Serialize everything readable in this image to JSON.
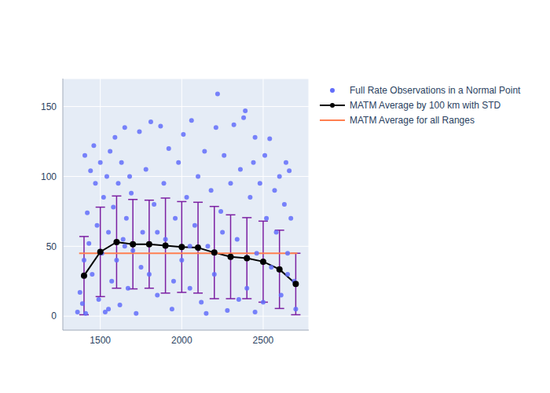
{
  "chart_data": {
    "type": "scatter",
    "xlim": [
      1270,
      2780
    ],
    "ylim": [
      -10,
      170
    ],
    "xticks": [
      1500,
      2000,
      2500
    ],
    "yticks": [
      0,
      50,
      100,
      150
    ],
    "grid": true,
    "legend": "right",
    "series": [
      {
        "name": "Full Rate Observations in a Normal Point",
        "color": "#636efa",
        "type": "scatter",
        "marker": "circle",
        "x": [
          1360,
          1375,
          1390,
          1400,
          1405,
          1410,
          1420,
          1430,
          1440,
          1450,
          1460,
          1470,
          1480,
          1490,
          1500,
          1510,
          1520,
          1530,
          1540,
          1550,
          1560,
          1570,
          1580,
          1590,
          1600,
          1610,
          1620,
          1630,
          1640,
          1650,
          1660,
          1670,
          1680,
          1690,
          1700,
          1720,
          1740,
          1760,
          1780,
          1800,
          1810,
          1830,
          1850,
          1870,
          1890,
          1900,
          1920,
          1940,
          1960,
          1980,
          2000,
          2010,
          2030,
          2050,
          2060,
          2080,
          2100,
          2120,
          2140,
          2160,
          2180,
          2200,
          2210,
          2220,
          2240,
          2260,
          2280,
          2300,
          2320,
          2340,
          2360,
          2380,
          2390,
          2400,
          2420,
          2440,
          2450,
          2460,
          2480,
          2500,
          2510,
          2520,
          2540,
          2550,
          2570,
          2580,
          2600,
          2610,
          2630,
          2640,
          2650,
          2660,
          2670,
          2690,
          2700,
          1550,
          1750,
          1950,
          2150,
          2350,
          2450,
          2650,
          1650,
          1850,
          2050,
          2250
        ],
        "values": [
          3,
          17,
          9,
          40,
          115,
          2,
          74,
          52,
          104,
          30,
          122,
          95,
          65,
          12,
          110,
          45,
          85,
          3,
          100,
          60,
          118,
          25,
          78,
          128,
          40,
          95,
          8,
          110,
          55,
          135,
          70,
          20,
          100,
          88,
          47,
          2,
          132,
          60,
          105,
          30,
          139,
          80,
          15,
          136,
          95,
          55,
          120,
          5,
          70,
          110,
          40,
          130,
          85,
          20,
          140,
          65,
          100,
          10,
          118,
          50,
          90,
          30,
          135,
          159,
          75,
          115,
          4,
          95,
          137,
          55,
          105,
          142,
          147,
          20,
          85,
          110,
          128,
          45,
          95,
          10,
          115,
          70,
          127,
          35,
          90,
          60,
          100,
          15,
          80,
          110,
          45,
          104,
          70,
          25,
          5,
          5,
          35,
          25,
          2,
          12,
          3,
          30,
          50,
          60,
          50,
          60
        ]
      },
      {
        "name": "MATM Average by 100 km with STD",
        "color": "#000000",
        "type": "line",
        "marker": "circle",
        "x": [
          1400,
          1500,
          1600,
          1700,
          1800,
          1900,
          2000,
          2100,
          2200,
          2300,
          2400,
          2500,
          2600,
          2700
        ],
        "values": [
          29,
          46,
          53,
          51.5,
          51.5,
          50.5,
          49.5,
          49,
          45.5,
          42.5,
          41.5,
          39,
          33.5,
          23
        ],
        "std": [
          28,
          32,
          33,
          32,
          31.5,
          34,
          32.5,
          32.5,
          33,
          30,
          29,
          29,
          28,
          22
        ]
      },
      {
        "name": "MATM Average for all Ranges",
        "color": "#ff7f50",
        "type": "line",
        "x": [
          1370,
          2710
        ],
        "values": [
          45,
          45
        ]
      }
    ]
  }
}
